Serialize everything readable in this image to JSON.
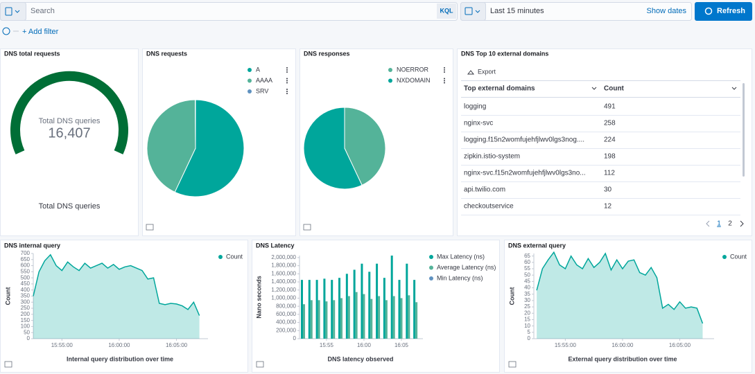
{
  "search": {
    "placeholder": "Search",
    "language": "KQL",
    "time_range": "Last 15 minutes",
    "show_dates": "Show dates",
    "refresh": "Refresh"
  },
  "filter": {
    "add": "+ Add filter"
  },
  "metric": {
    "title": "DNS total requests",
    "value": "16,407",
    "label": "Total DNS queries"
  },
  "table": {
    "title": "DNS Top 10 external domains",
    "export": "Export",
    "columns": [
      "Top external domains",
      "Count"
    ],
    "rows": [
      [
        "logging",
        491
      ],
      [
        "nginx-svc",
        258
      ],
      [
        "logging.f15n2womfujehfjlwv0lgs3nog....",
        224
      ],
      [
        "zipkin.istio-system",
        198
      ],
      [
        "nginx-svc.f15n2womfujehfjlwv0lgs3no...",
        112
      ],
      [
        "api.twilio.com",
        30
      ],
      [
        "checkoutservice",
        12
      ]
    ],
    "pages": [
      1,
      2
    ]
  },
  "charts": [
    {
      "type": "pie",
      "title": "DNS requests",
      "categories": [
        "A",
        "AAAA",
        "SRV"
      ],
      "values": [
        57,
        42.9,
        0.1
      ],
      "colors": [
        "#00a69b",
        "#54b399",
        "#6092c0"
      ]
    },
    {
      "type": "pie",
      "title": "DNS responses",
      "categories": [
        "NOERROR",
        "NXDOMAIN"
      ],
      "values": [
        43,
        57
      ],
      "colors": [
        "#54b399",
        "#00a69b"
      ]
    },
    {
      "type": "line",
      "title": "DNS internal query",
      "ylabel": "Count",
      "xlabel": "Internal query distribution over time",
      "x": [
        "15:52:30",
        "15:53:00",
        "15:53:30",
        "15:54:00",
        "15:54:30",
        "15:55:00",
        "15:55:30",
        "15:56:00",
        "15:56:30",
        "15:57:00",
        "15:57:30",
        "15:58:00",
        "15:58:30",
        "15:59:00",
        "15:59:30",
        "16:00:00",
        "16:00:30",
        "16:01:00",
        "16:01:30",
        "16:02:00",
        "16:02:30",
        "16:03:00",
        "16:03:30",
        "16:04:00",
        "16:04:30",
        "16:05:00",
        "16:05:30",
        "16:06:00",
        "16:06:30",
        "16:07:00"
      ],
      "series": [
        {
          "name": "Count",
          "color": "#00a69b",
          "values": [
            350,
            550,
            640,
            690,
            600,
            560,
            630,
            590,
            560,
            620,
            580,
            600,
            620,
            580,
            610,
            570,
            590,
            600,
            580,
            560,
            490,
            500,
            290,
            280,
            290,
            285,
            270,
            240,
            300,
            190
          ]
        }
      ],
      "xlim": [
        "15:52:30",
        "16:07:45"
      ],
      "xticks": [
        "15:55:00",
        "16:00:00",
        "16:05:00"
      ],
      "ylim": [
        0,
        700
      ],
      "yticks": [
        0,
        50,
        100,
        150,
        200,
        250,
        300,
        350,
        400,
        450,
        500,
        550,
        600,
        650,
        700
      ]
    },
    {
      "type": "bar",
      "title": "DNS Latency",
      "ylabel": "Nano seconds",
      "xlabel": "DNS latency observed",
      "x": [
        "15:52",
        "15:53",
        "15:54",
        "15:55",
        "15:56",
        "15:57",
        "15:58",
        "15:59",
        "16:00",
        "16:01",
        "16:02",
        "16:03",
        "16:04",
        "16:05",
        "16:06",
        "16:07"
      ],
      "series": [
        {
          "name": "Max Latency (ns)",
          "color": "#00a69b",
          "values": [
            1450000,
            1450000,
            1450000,
            1480000,
            1450000,
            1500000,
            1600000,
            1700000,
            1850000,
            1650000,
            1850000,
            1500000,
            2050000,
            1450000,
            1850000,
            1450000
          ]
        },
        {
          "name": "Average Latency (ns)",
          "color": "#54b399",
          "values": [
            850000,
            950000,
            950000,
            920000,
            950000,
            1000000,
            1050000,
            1150000,
            1100000,
            980000,
            1050000,
            950000,
            1050000,
            1000000,
            1070000,
            900000
          ]
        },
        {
          "name": "Min Latency (ns)",
          "color": "#6092c0",
          "values": [
            2000,
            2000,
            2000,
            2000,
            2000,
            2000,
            2000,
            2000,
            2000,
            2000,
            2000,
            2000,
            2000,
            2000,
            2000,
            2000
          ]
        }
      ],
      "xlim": [
        "15:51:24",
        "16:07:52"
      ],
      "xticks": [
        "15:55",
        "16:00",
        "16:05"
      ],
      "ylim": [
        0,
        2050000
      ],
      "yticks": [
        0,
        {
          "value": 200000,
          "label": "200,000"
        },
        {
          "value": 400000,
          "label": "400,000"
        },
        {
          "value": 600000,
          "label": "600,000"
        },
        {
          "value": 800000,
          "label": "800,000"
        },
        {
          "value": 1000000,
          "label": "1,000,000"
        },
        {
          "value": 1200000,
          "label": "1,200,000"
        },
        {
          "value": 1400000,
          "label": "1,400,000"
        },
        {
          "value": 1600000,
          "label": "1,600,000"
        },
        {
          "value": 1800000,
          "label": "1,800,000"
        },
        {
          "value": 2000000,
          "label": "2,000,000"
        }
      ]
    },
    {
      "type": "line",
      "title": "DNS external query",
      "ylabel": "Count",
      "xlabel": "External query distribution over time",
      "x": [
        "15:52:30",
        "15:53:00",
        "15:53:30",
        "15:54:00",
        "15:54:30",
        "15:55:00",
        "15:55:30",
        "15:56:00",
        "15:56:30",
        "15:57:00",
        "15:57:30",
        "15:58:00",
        "15:58:30",
        "15:59:00",
        "15:59:30",
        "16:00:00",
        "16:00:30",
        "16:01:00",
        "16:01:30",
        "16:02:00",
        "16:02:30",
        "16:03:00",
        "16:03:30",
        "16:04:00",
        "16:04:30",
        "16:05:00",
        "16:05:30",
        "16:06:00",
        "16:06:30",
        "16:07:00"
      ],
      "series": [
        {
          "name": "Count",
          "color": "#00a69b",
          "values": [
            38,
            55,
            62,
            68,
            58,
            55,
            65,
            58,
            55,
            63,
            56,
            60,
            67,
            54,
            62,
            55,
            61,
            62,
            52,
            50,
            56,
            48,
            24,
            27,
            23,
            29,
            24,
            25,
            24,
            12
          ]
        }
      ],
      "xlim": [
        "15:52:15",
        "16:08:00"
      ],
      "xticks": [
        "15:55:00",
        "16:00:00",
        "16:05:00"
      ],
      "ylim": [
        0,
        67
      ],
      "yticks": [
        0,
        5,
        10,
        15,
        20,
        25,
        30,
        35,
        40,
        45,
        50,
        55,
        60,
        65
      ]
    }
  ]
}
